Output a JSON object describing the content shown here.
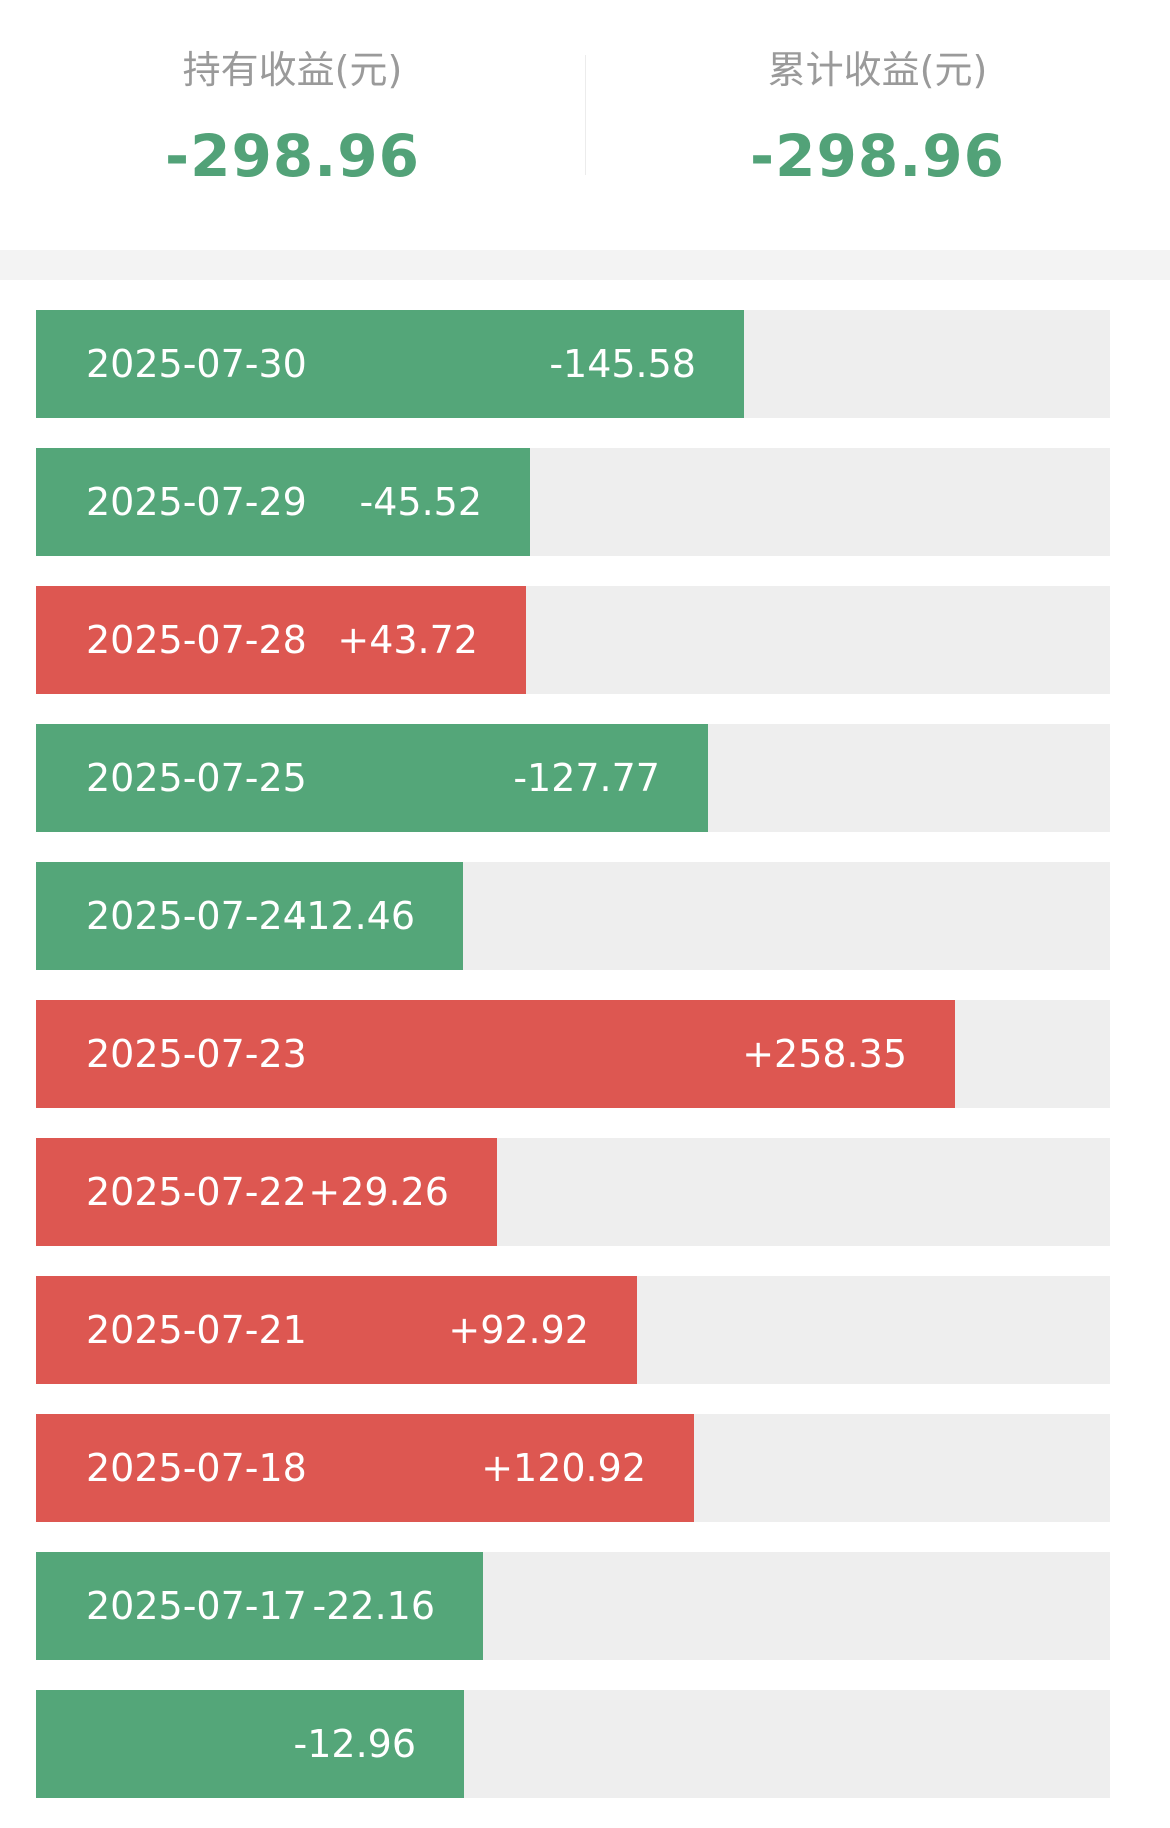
{
  "summary": {
    "holding": {
      "label": "持有收益(元)",
      "value": "-298.96"
    },
    "cumulative": {
      "label": "累计收益(元)",
      "value": "-298.96"
    }
  },
  "colors": {
    "gain": "#dd5751",
    "loss": "#54a679",
    "track": "#eeeeee"
  },
  "rows": [
    {
      "date": "2025-07-30",
      "amount": "-145.58",
      "value": -145.58
    },
    {
      "date": "2025-07-29",
      "amount": "-45.52",
      "value": -45.52
    },
    {
      "date": "2025-07-28",
      "amount": "+43.72",
      "value": 43.72
    },
    {
      "date": "2025-07-25",
      "amount": "-127.77",
      "value": -127.77
    },
    {
      "date": "2025-07-24",
      "amount": "-12.46",
      "value": -12.46
    },
    {
      "date": "2025-07-23",
      "amount": "+258.35",
      "value": 258.35
    },
    {
      "date": "2025-07-22",
      "amount": "+29.26",
      "value": 29.26
    },
    {
      "date": "2025-07-21",
      "amount": "+92.92",
      "value": 92.92
    },
    {
      "date": "2025-07-18",
      "amount": "+120.92",
      "value": 120.92
    },
    {
      "date": "2025-07-17",
      "amount": "-22.16",
      "value": -22.16
    },
    {
      "date": "",
      "amount": "-12.96",
      "value": -12.96
    }
  ]
}
